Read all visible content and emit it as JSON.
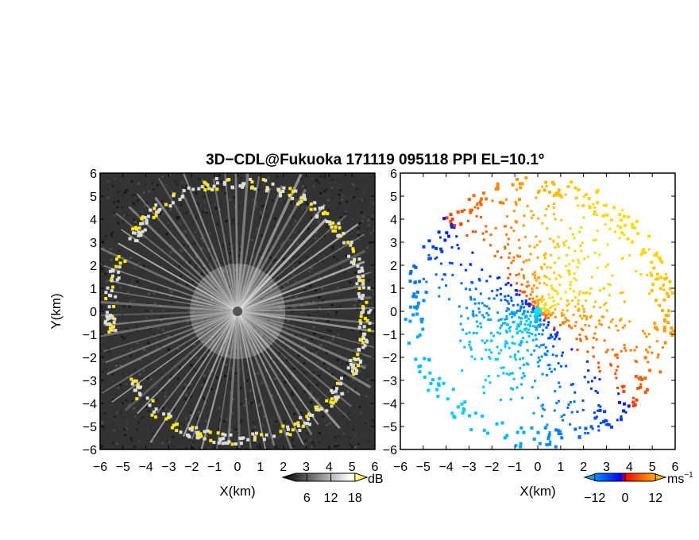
{
  "title": "3D−CDL@Fukuoka 171119 095118 PPI EL=10.1º",
  "chart_data": [
    {
      "type": "heatmap",
      "panel": "left",
      "quantity": "signal-to-noise ratio",
      "xlabel": "X(km)",
      "ylabel": "Y(km)",
      "xlim": [
        -6,
        6
      ],
      "ylim": [
        -6,
        6
      ],
      "xticks": [
        "−6",
        "−5",
        "−4",
        "−3",
        "−2",
        "−1",
        "0",
        "1",
        "2",
        "3",
        "4",
        "5",
        "6"
      ],
      "yticks": [
        "6",
        "5",
        "4",
        "3",
        "2",
        "1",
        "0",
        "−1",
        "−2",
        "−3",
        "−4",
        "−5",
        "−6"
      ],
      "colormap": [
        "#000000",
        "#ffffff",
        "#ffff00"
      ],
      "background": "#333333",
      "echo_ring_radius_km": 5.5,
      "colorbar": {
        "ticks": [
          "6",
          "12",
          "18"
        ],
        "unit": "dB",
        "range": [
          0,
          21
        ]
      }
    },
    {
      "type": "heatmap",
      "panel": "right",
      "quantity": "Doppler velocity",
      "xlabel": "X(km)",
      "ylabel": "",
      "xlim": [
        -6,
        6
      ],
      "ylim": [
        -6,
        6
      ],
      "xticks": [
        "−6",
        "−5",
        "−4",
        "−3",
        "−2",
        "−1",
        "0",
        "1",
        "2",
        "3",
        "4",
        "5",
        "6"
      ],
      "yticks": [
        "6",
        "5",
        "4",
        "3",
        "2",
        "1",
        "0",
        "−1",
        "−2",
        "−3",
        "−4",
        "−5",
        "−6"
      ],
      "colormap": [
        "#00ccff",
        "#0000ff",
        "#ff0000",
        "#ffdd00"
      ],
      "colorbar": {
        "ticks": [
          "−12",
          "0",
          "12"
        ],
        "unit": "ms",
        "unit_exponent": "−1",
        "range": [
          -16,
          16
        ]
      }
    }
  ]
}
